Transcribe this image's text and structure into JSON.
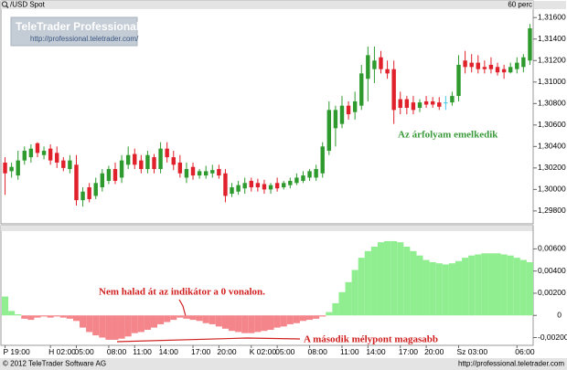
{
  "header": {
    "symbol": "/USD Spot",
    "interval": "60 perc"
  },
  "logo": {
    "title": "TeleTrader Professional",
    "url": "http://professional.teletrader.com/"
  },
  "footer": {
    "copyright": "© 2012 TeleTrader Software AG",
    "url": "http://professional.teletrader.com"
  },
  "chart_data": [
    {
      "type": "candlestick",
      "annotation": "Az árfolyam emelkedik",
      "up_color": "#2e9a2e",
      "down_color": "#e0202a",
      "doji_color": "#40c8e8",
      "open": [
        1.3025,
        1.3017,
        1.3013,
        1.3027,
        1.303,
        1.3043,
        1.3032,
        1.3038,
        1.3034,
        1.3027,
        1.3019,
        1.3023,
        1.299,
        1.3002,
        1.2994,
        1.3002,
        1.3008,
        1.3019,
        1.3011,
        1.3023,
        1.3033,
        1.3027,
        1.3019,
        1.303,
        1.3019,
        1.3038,
        1.303,
        1.3025,
        1.3011,
        1.3021,
        1.3013,
        1.3013,
        1.3015,
        1.3019,
        1.3015,
        1.2996,
        1.2998,
        1.3001,
        1.3008,
        1.3006,
        1.3005,
        1.3,
        1.3006,
        1.3002,
        1.3004,
        1.3006,
        1.3008,
        1.3011,
        1.3011,
        1.3015,
        1.3036,
        1.3057,
        1.3061,
        1.3078,
        1.3072,
        1.3078,
        1.3103,
        1.3112,
        1.3123,
        1.3112,
        1.3112,
        1.3084,
        1.3084,
        1.3081,
        1.3076,
        1.3082,
        1.3082,
        1.3081,
        1.3081,
        1.3081,
        1.3087,
        1.312,
        1.3118,
        1.3118,
        1.3114,
        1.3116,
        1.3114,
        1.3112,
        1.3109,
        1.3112,
        1.3114,
        1.312
      ],
      "high": [
        1.303,
        1.3025,
        1.3036,
        1.304,
        1.3042,
        1.3044,
        1.304,
        1.3042,
        1.304,
        1.303,
        1.3032,
        1.3032,
        1.3002,
        1.3006,
        1.3011,
        1.3019,
        1.3022,
        1.3025,
        1.3032,
        1.304,
        1.3038,
        1.3032,
        1.3036,
        1.3033,
        1.3044,
        1.3044,
        1.3036,
        1.3032,
        1.3025,
        1.3025,
        1.3019,
        1.3022,
        1.3023,
        1.3023,
        1.3019,
        1.3006,
        1.3008,
        1.3011,
        1.3011,
        1.301,
        1.3009,
        1.3006,
        1.3011,
        1.3008,
        1.3011,
        1.3015,
        1.3017,
        1.3019,
        1.3023,
        1.3044,
        1.3082,
        1.3078,
        1.3087,
        1.3082,
        1.3091,
        1.3116,
        1.3133,
        1.3133,
        1.3129,
        1.312,
        1.312,
        1.3091,
        1.3087,
        1.3087,
        1.3084,
        1.3087,
        1.3086,
        1.3086,
        1.3087,
        1.3091,
        1.3125,
        1.3129,
        1.3126,
        1.3125,
        1.312,
        1.3123,
        1.3118,
        1.3116,
        1.3118,
        1.3123,
        1.3126,
        1.3154
      ],
      "low": [
        1.2995,
        1.3011,
        1.3009,
        1.3023,
        1.3025,
        1.303,
        1.3028,
        1.3023,
        1.302,
        1.3017,
        1.3015,
        1.2985,
        1.2984,
        1.2988,
        1.2991,
        1.2998,
        1.3005,
        1.3005,
        1.3006,
        1.3019,
        1.3019,
        1.3015,
        1.3015,
        1.3015,
        1.3015,
        1.3025,
        1.3018,
        1.3011,
        1.3006,
        1.3009,
        1.301,
        1.301,
        1.3011,
        1.301,
        1.2988,
        1.2993,
        1.2995,
        1.2996,
        1.2998,
        1.2998,
        1.2996,
        1.2996,
        1.2998,
        1.3,
        1.3001,
        1.3004,
        1.3006,
        1.3008,
        1.3008,
        1.3011,
        1.3032,
        1.304,
        1.3057,
        1.3065,
        1.3065,
        1.3074,
        1.3082,
        1.3099,
        1.3108,
        1.3103,
        1.3061,
        1.307,
        1.307,
        1.307,
        1.3072,
        1.3076,
        1.3076,
        1.3074,
        1.3074,
        1.3078,
        1.3082,
        1.3108,
        1.3109,
        1.3108,
        1.3108,
        1.3108,
        1.3106,
        1.3103,
        1.3108,
        1.3108,
        1.3109,
        1.3116
      ],
      "close": [
        1.3015,
        1.3021,
        1.3027,
        1.3036,
        1.3038,
        1.3034,
        1.3036,
        1.3027,
        1.3025,
        1.302,
        1.3027,
        1.299,
        1.2998,
        1.2991,
        1.3006,
        1.3015,
        1.3019,
        1.3008,
        1.3027,
        1.3032,
        1.3023,
        1.3019,
        1.3032,
        1.3019,
        1.3038,
        1.303,
        1.3023,
        1.3015,
        1.3019,
        1.3013,
        1.3017,
        1.3017,
        1.3018,
        1.3013,
        1.2994,
        1.3002,
        1.3004,
        1.3006,
        1.3002,
        1.3002,
        1.3,
        1.3004,
        1.3001,
        1.3006,
        1.3008,
        1.3011,
        1.3013,
        1.3017,
        1.3019,
        1.304,
        1.3074,
        1.3074,
        1.3078,
        1.307,
        1.3082,
        1.3108,
        1.3125,
        1.312,
        1.3112,
        1.3108,
        1.3074,
        1.3076,
        1.3076,
        1.3074,
        1.3081,
        1.3079,
        1.3079,
        1.3077,
        1.3081,
        1.3087,
        1.3116,
        1.3114,
        1.3114,
        1.3112,
        1.3112,
        1.3112,
        1.3109,
        1.3109,
        1.3114,
        1.3118,
        1.3123,
        1.315
      ],
      "ylim": [
        1.2968,
        1.3167
      ],
      "yticks": [
        {
          "value": 1.316,
          "label": "1,31600"
        },
        {
          "value": 1.314,
          "label": "1,31400"
        },
        {
          "value": 1.312,
          "label": "1,31200"
        },
        {
          "value": 1.31,
          "label": "1,31000"
        },
        {
          "value": 1.308,
          "label": "1,30800"
        },
        {
          "value": 1.306,
          "label": "1,30600"
        },
        {
          "value": 1.304,
          "label": "1,30400"
        },
        {
          "value": 1.302,
          "label": "1,30200"
        },
        {
          "value": 1.3,
          "label": "1,30000"
        },
        {
          "value": 1.298,
          "label": "1,29800"
        }
      ]
    },
    {
      "type": "bar",
      "annotations": [
        "Nem halad át az indikátor a 0 vonalon.",
        "A második mélypont magasabb"
      ],
      "positive_color": "#90ee90",
      "negative_color": "#f4858a",
      "values": [
        0.0017,
        0.0004,
        0.0001,
        -0.0003,
        -0.0004,
        -0.0002,
        -0.0001,
        -0.0002,
        -0.0001,
        -0.0002,
        -0.0003,
        -0.0005,
        -0.0011,
        -0.0015,
        -0.0018,
        -0.002,
        -0.0022,
        -0.0022,
        -0.0021,
        -0.0019,
        -0.0016,
        -0.0015,
        -0.0013,
        -0.0011,
        -0.0008,
        -0.0006,
        -0.0004,
        -0.0002,
        -0.0003,
        -0.0004,
        -0.0005,
        -0.0007,
        -0.0008,
        -0.001,
        -0.0012,
        -0.0014,
        -0.0015,
        -0.0016,
        -0.0016,
        -0.0015,
        -0.0014,
        -0.0013,
        -0.0011,
        -0.001,
        -0.0008,
        -0.0007,
        -0.0005,
        -0.0004,
        -0.0003,
        -0.0001,
        0.0003,
        0.0011,
        0.0021,
        0.003,
        0.0041,
        0.0052,
        0.0058,
        0.0062,
        0.0066,
        0.0067,
        0.0067,
        0.0066,
        0.0062,
        0.0058,
        0.0054,
        0.005,
        0.0048,
        0.0047,
        0.0046,
        0.0047,
        0.0049,
        0.0052,
        0.0054,
        0.0055,
        0.0056,
        0.0056,
        0.0056,
        0.0055,
        0.0054,
        0.0052,
        0.005,
        0.0048
      ],
      "ylim": [
        -0.0027,
        0.0076
      ],
      "yticks": [
        {
          "value": 0.006,
          "label": "0,00600"
        },
        {
          "value": 0.004,
          "label": "0,00400"
        },
        {
          "value": 0.002,
          "label": "0,00200"
        },
        0,
        {
          "value": -0.002,
          "label": "-0,00200"
        }
      ],
      "xticks": [
        {
          "value": 0,
          "label": "P 19:00"
        },
        {
          "value": 7,
          "label": "H 02:00"
        },
        {
          "value": 11,
          "label": "05:00"
        },
        {
          "value": 16,
          "label": "08:00"
        },
        {
          "value": 20,
          "label": "11:00"
        },
        {
          "value": 24,
          "label": "14:00"
        },
        {
          "value": 29,
          "label": "17:00"
        },
        {
          "value": 33,
          "label": "20:00"
        },
        {
          "value": 38,
          "label": "K 02:00"
        },
        {
          "value": 42,
          "label": "05:00"
        },
        {
          "value": 47,
          "label": "08:00"
        },
        {
          "value": 52,
          "label": "11:00"
        },
        {
          "value": 56,
          "label": "14:00"
        },
        {
          "value": 61,
          "label": "17:00"
        },
        {
          "value": 65,
          "label": "20:00"
        },
        {
          "value": 70,
          "label": "Sz 03:00"
        },
        {
          "value": 79,
          "label": "06:00"
        }
      ]
    }
  ]
}
